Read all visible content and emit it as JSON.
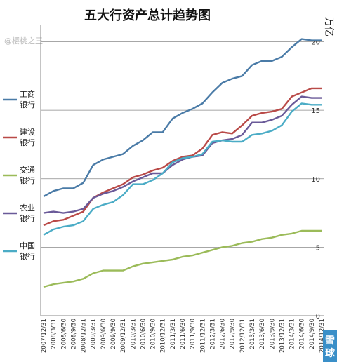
{
  "chart_data": {
    "type": "line",
    "title": "五大行资产总计趋势图",
    "unit_label": "万亿",
    "ylim": [
      0,
      21
    ],
    "yticks": [
      0,
      5,
      10,
      15,
      20
    ],
    "grid": true,
    "legend_position": "left",
    "watermark": "@樱桃之王",
    "badge_text": "雪球",
    "x": [
      "2007/12/31",
      "2008/3/31",
      "2008/6/30",
      "2008/9/30",
      "2008/12/31",
      "2009/3/31",
      "2009/6/30",
      "2009/9/30",
      "2009/12/31",
      "2010/3/31",
      "2010/6/30",
      "2010/9/30",
      "2010/12/31",
      "2011/3/31",
      "2011/6/30",
      "2011/9/30",
      "2011/12/31",
      "2012/3/31",
      "2012/6/30",
      "2012/9/30",
      "2012/12/31",
      "2013/3/31",
      "2013/6/30",
      "2013/9/30",
      "2013/12/31",
      "2014/3/31",
      "2014/6/30",
      "2014/9/30",
      "2014/12/31"
    ],
    "series": [
      {
        "name": "工商银行",
        "color": "#4a7ba7",
        "values": [
          8.7,
          9.1,
          9.3,
          9.3,
          9.7,
          11.0,
          11.4,
          11.6,
          11.8,
          12.4,
          12.8,
          13.4,
          13.4,
          14.4,
          14.8,
          15.1,
          15.5,
          16.3,
          17.0,
          17.3,
          17.5,
          18.3,
          18.6,
          18.6,
          18.9,
          19.6,
          20.2,
          20.1,
          20.1
        ]
      },
      {
        "name": "建设银行",
        "color": "#b94a48",
        "values": [
          6.6,
          6.9,
          7.0,
          7.3,
          7.6,
          8.6,
          9.0,
          9.3,
          9.6,
          10.1,
          10.3,
          10.6,
          10.8,
          11.3,
          11.6,
          11.7,
          12.2,
          13.2,
          13.4,
          13.3,
          13.9,
          14.6,
          14.8,
          14.9,
          15.1,
          16.0,
          16.3,
          16.6,
          16.6
        ]
      },
      {
        "name": "交通银行",
        "color": "#9bbb59",
        "values": [
          2.1,
          2.3,
          2.4,
          2.5,
          2.7,
          3.1,
          3.3,
          3.3,
          3.3,
          3.6,
          3.8,
          3.9,
          4.0,
          4.1,
          4.3,
          4.4,
          4.6,
          4.8,
          5.0,
          5.1,
          5.3,
          5.4,
          5.6,
          5.7,
          5.9,
          6.0,
          6.2,
          6.2,
          6.2
        ]
      },
      {
        "name": "农业银行",
        "color": "#6a5a99",
        "values": [
          7.5,
          7.6,
          7.5,
          7.6,
          7.8,
          8.6,
          8.9,
          9.1,
          9.4,
          9.8,
          10.1,
          10.4,
          10.4,
          11.0,
          11.4,
          11.6,
          11.7,
          12.6,
          12.8,
          12.9,
          13.2,
          14.1,
          14.1,
          14.3,
          14.6,
          15.4,
          16.0,
          15.9,
          15.9
        ]
      },
      {
        "name": "中国银行",
        "color": "#4bacc6",
        "values": [
          5.9,
          6.3,
          6.5,
          6.6,
          6.9,
          7.8,
          8.1,
          8.3,
          8.8,
          9.6,
          9.6,
          9.9,
          10.4,
          11.2,
          11.5,
          11.6,
          11.8,
          12.7,
          12.8,
          12.7,
          12.7,
          13.2,
          13.3,
          13.5,
          13.9,
          14.9,
          15.5,
          15.4,
          15.4
        ]
      }
    ]
  }
}
